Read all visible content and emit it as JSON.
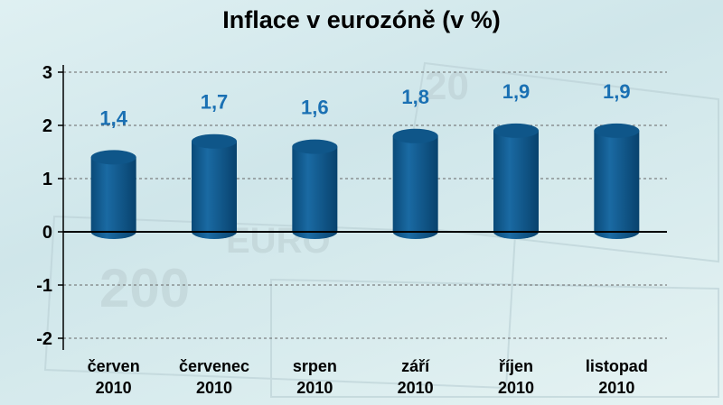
{
  "chart_data": {
    "type": "bar",
    "title": "Inflace v eurozóně (v %)",
    "categories": [
      [
        "červen",
        "2010"
      ],
      [
        "červenec",
        "2010"
      ],
      [
        "srpen",
        "2010"
      ],
      [
        "září",
        "2010"
      ],
      [
        "říjen",
        "2010"
      ],
      [
        "listopad",
        "2010"
      ]
    ],
    "values": [
      1.4,
      1.7,
      1.6,
      1.8,
      1.9,
      1.9
    ],
    "data_labels": [
      "1,4",
      "1,7",
      "1,6",
      "1,8",
      "1,9",
      "1,9"
    ],
    "yticks": [
      "-2",
      "-1",
      "0",
      "1",
      "2",
      "3"
    ],
    "ylim": [
      -2,
      3
    ],
    "grid": "dashed horizontal",
    "bar_style": "cylinder",
    "colors": {
      "bar": "#0d5a8f",
      "label": "#1a70b3"
    }
  }
}
